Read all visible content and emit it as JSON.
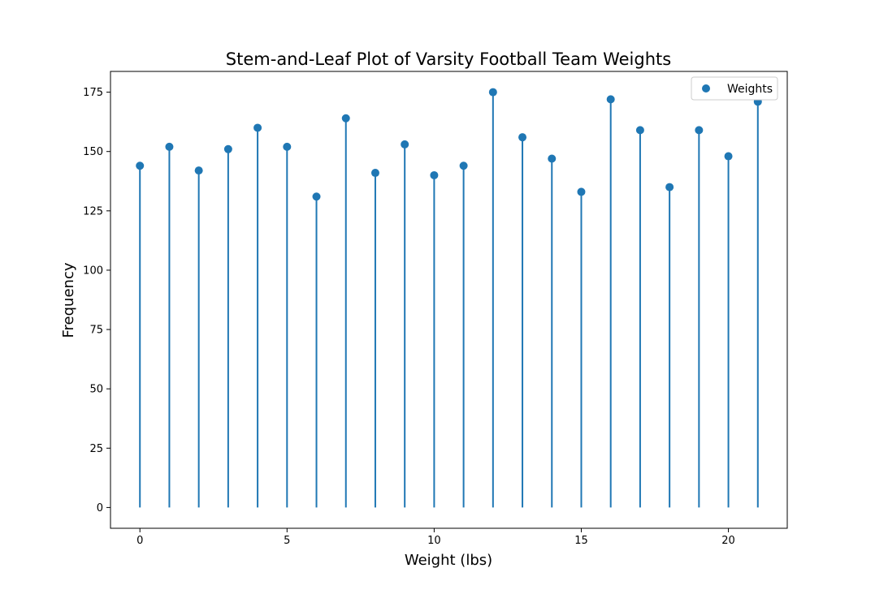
{
  "chart_data": {
    "type": "stem",
    "title": "Stem-and-Leaf Plot of Varsity Football Team Weights",
    "xlabel": "Weight (lbs)",
    "ylabel": "Frequency",
    "x": [
      0,
      1,
      2,
      3,
      4,
      5,
      6,
      7,
      8,
      9,
      10,
      11,
      12,
      13,
      14,
      15,
      16,
      17,
      18,
      19,
      20,
      21
    ],
    "series": [
      {
        "name": "Weights",
        "values": [
          144,
          152,
          142,
          151,
          160,
          152,
          131,
          164,
          141,
          153,
          140,
          144,
          175,
          156,
          147,
          133,
          172,
          159,
          135,
          159,
          148,
          171
        ],
        "color": "#1f77b4"
      }
    ],
    "xlim": [
      -1,
      22
    ],
    "ylim": [
      -8.75,
      183.75
    ],
    "xticks": [
      0,
      5,
      10,
      15,
      20
    ],
    "yticks": [
      0,
      25,
      50,
      75,
      100,
      125,
      150,
      175
    ],
    "grid": false,
    "legend_position": "top-right"
  }
}
